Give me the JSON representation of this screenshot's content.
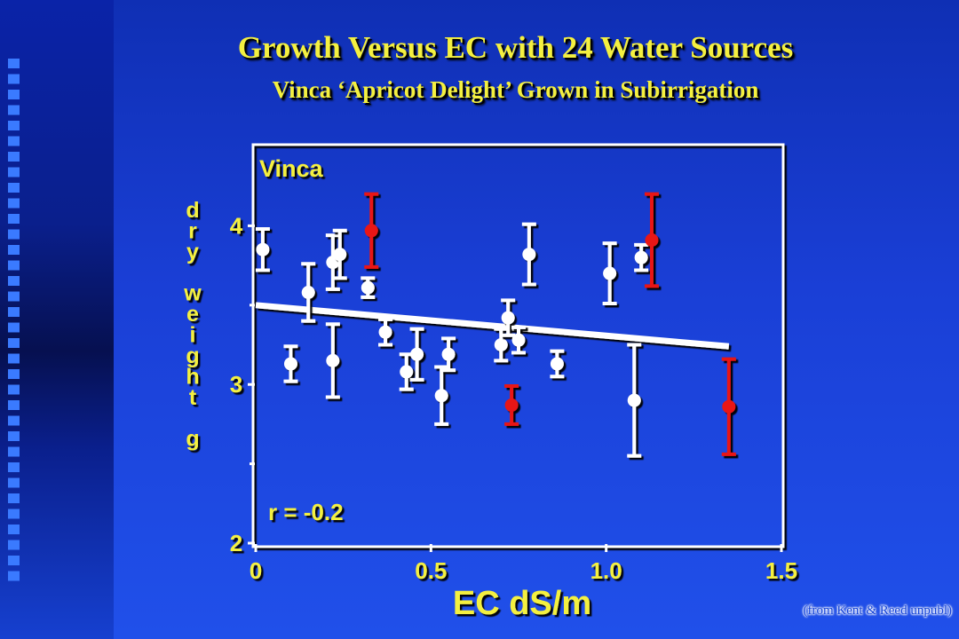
{
  "slide": {
    "title": "Growth Versus EC with 24 Water Sources",
    "subtitle": "Vinca ‘Apricot Delight’ Grown in Subirrigation",
    "credit": "(from Kent & Reed unpubl)"
  },
  "colors": {
    "title": "#f4f040",
    "axis_text": "#f4f040",
    "plot_text": "#f4f040",
    "white_points": "#ffffff",
    "red_points": "#e81616",
    "plot_frame": "#ffffff"
  },
  "chart_data": {
    "type": "scatter",
    "panel_label": "Vinca",
    "annotation": "r = -0.2",
    "xlabel": "EC dS/m",
    "ylabel": "dry weight g",
    "xlim": [
      0,
      1.5
    ],
    "ylim": [
      2,
      4.5
    ],
    "xticks": [
      0,
      0.5,
      1.0,
      1.5
    ],
    "xtick_labels": [
      "0",
      "0.5",
      "1.0",
      "1.5"
    ],
    "yticks": [
      2,
      3,
      4
    ],
    "ytick_labels": [
      "2",
      "3",
      "4"
    ],
    "trend_line": {
      "x": [
        0,
        1.35
      ],
      "y": [
        3.5,
        3.24
      ]
    },
    "series": [
      {
        "color": "white",
        "points": [
          {
            "x": 0.02,
            "y": 3.85,
            "err": 0.13
          },
          {
            "x": 0.1,
            "y": 3.13,
            "err": 0.11
          },
          {
            "x": 0.15,
            "y": 3.58,
            "err": 0.18
          },
          {
            "x": 0.22,
            "y": 3.77,
            "err": 0.17
          },
          {
            "x": 0.24,
            "y": 3.82,
            "err": 0.15
          },
          {
            "x": 0.22,
            "y": 3.15,
            "err": 0.23
          },
          {
            "x": 0.32,
            "y": 3.61,
            "err": 0.06
          },
          {
            "x": 0.37,
            "y": 3.33,
            "err": 0.08
          },
          {
            "x": 0.43,
            "y": 3.08,
            "err": 0.11
          },
          {
            "x": 0.46,
            "y": 3.19,
            "err": 0.16
          },
          {
            "x": 0.53,
            "y": 2.93,
            "err": 0.18
          },
          {
            "x": 0.55,
            "y": 3.19,
            "err": 0.1
          },
          {
            "x": 0.7,
            "y": 3.25,
            "err": 0.1
          },
          {
            "x": 0.72,
            "y": 3.42,
            "err": 0.11
          },
          {
            "x": 0.75,
            "y": 3.28,
            "err": 0.08
          },
          {
            "x": 0.78,
            "y": 3.82,
            "err": 0.19
          },
          {
            "x": 0.86,
            "y": 3.13,
            "err": 0.08
          },
          {
            "x": 1.01,
            "y": 3.7,
            "err": 0.19
          },
          {
            "x": 1.08,
            "y": 2.9,
            "err": 0.35
          },
          {
            "x": 1.1,
            "y": 3.8,
            "err": 0.08
          }
        ]
      },
      {
        "color": "red",
        "points": [
          {
            "x": 0.33,
            "y": 3.97,
            "err": 0.23
          },
          {
            "x": 0.73,
            "y": 2.87,
            "err": 0.12
          },
          {
            "x": 1.13,
            "y": 3.91,
            "err": 0.29
          },
          {
            "x": 1.35,
            "y": 2.86,
            "err": 0.3
          }
        ]
      }
    ]
  }
}
